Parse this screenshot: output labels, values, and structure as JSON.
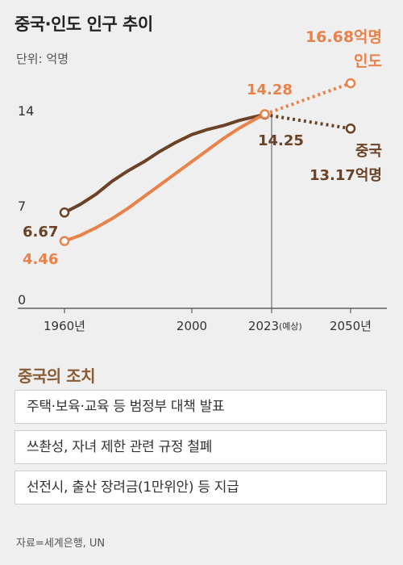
{
  "title": "중국·인도 인구 추이",
  "unit": "단위: 억명",
  "colors": {
    "china": "#6b4226",
    "india": "#e8824a",
    "axis": "#444",
    "grid": "#555"
  },
  "chart_data": {
    "type": "line",
    "ylim": [
      0,
      17
    ],
    "y_ticks": [
      "0",
      "7",
      "14"
    ],
    "x_ticks": [
      {
        "year": 1960,
        "label": "1960년",
        "suffix": ""
      },
      {
        "year": 2000,
        "label": "2000",
        "suffix": ""
      },
      {
        "year": 2023,
        "label": "2023",
        "suffix": "(예상)"
      },
      {
        "year": 2050,
        "label": "2050년",
        "suffix": ""
      }
    ],
    "series": [
      {
        "name": "중국",
        "key": "china",
        "x": [
          1960,
          1965,
          1970,
          1975,
          1980,
          1985,
          1990,
          1995,
          2000,
          2005,
          2010,
          2015,
          2020,
          2023,
          2050
        ],
        "values": [
          6.67,
          7.3,
          8.1,
          9.1,
          9.9,
          10.6,
          11.4,
          12.1,
          12.7,
          13.1,
          13.4,
          13.8,
          14.1,
          14.25,
          13.17
        ],
        "projected_from": 2023
      },
      {
        "name": "인도",
        "key": "india",
        "x": [
          1960,
          1965,
          1970,
          1975,
          1980,
          1985,
          1990,
          1995,
          2000,
          2005,
          2010,
          2015,
          2020,
          2023,
          2050
        ],
        "values": [
          4.46,
          4.9,
          5.5,
          6.2,
          7.0,
          7.9,
          8.8,
          9.7,
          10.6,
          11.5,
          12.4,
          13.2,
          13.9,
          14.28,
          16.68
        ],
        "projected_from": 2023
      }
    ],
    "labels": {
      "china_1960": "6.67",
      "india_1960": "4.46",
      "india_2023": "14.28",
      "china_2023": "14.25",
      "india_2050": "16.68억명",
      "india_name": "인도",
      "china_name": "중국",
      "china_2050": "13.17억명"
    }
  },
  "section_title": "중국의 조치",
  "measures": [
    "주택·보육·교육 등 범정부 대책 발표",
    "쓰촨성, 자녀 제한 관련 규정 철폐",
    "선전시, 출산 장려금(1만위안) 등 지급"
  ],
  "source": "자료=세계은행, UN"
}
